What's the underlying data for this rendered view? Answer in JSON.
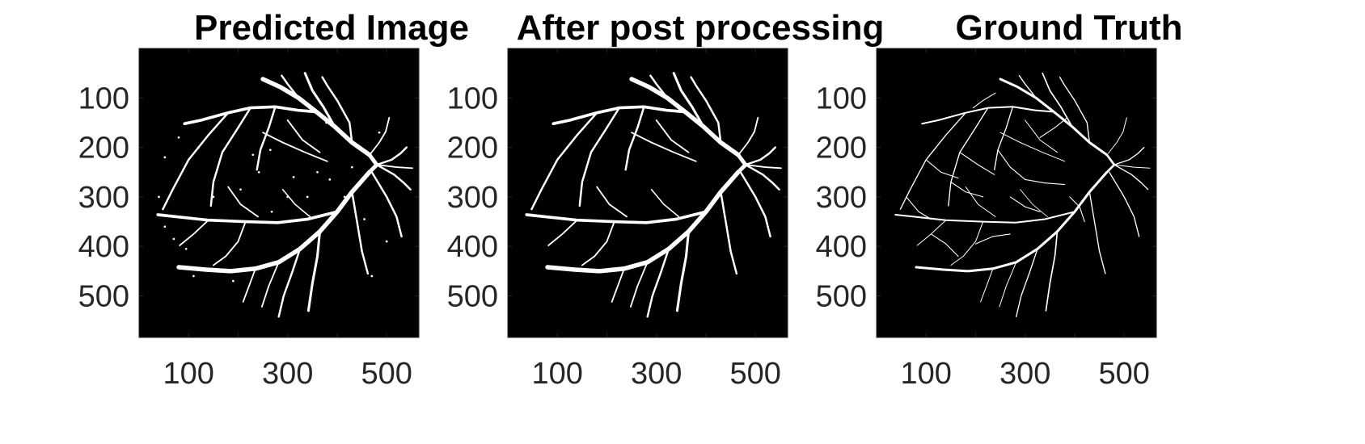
{
  "figure": {
    "panels": [
      {
        "title": "Predicted Image",
        "variant": "predicted"
      },
      {
        "title": "After post processing",
        "variant": "post"
      },
      {
        "title": "Ground Truth",
        "variant": "truth"
      }
    ],
    "y_ticks": [
      {
        "value": 100,
        "label": "100"
      },
      {
        "value": 200,
        "label": "200"
      },
      {
        "value": 300,
        "label": "300"
      },
      {
        "value": 400,
        "label": "400"
      },
      {
        "value": 500,
        "label": "500"
      }
    ],
    "x_ticks": [
      {
        "value": 100,
        "label": "100"
      },
      {
        "value": 200,
        "label": ""
      },
      {
        "value": 300,
        "label": "300"
      },
      {
        "value": 400,
        "label": ""
      },
      {
        "value": 500,
        "label": "500"
      }
    ],
    "axis_range": {
      "x": [
        0,
        565
      ],
      "y": [
        0,
        584
      ]
    },
    "colors": {
      "background": "#000000",
      "vessel": "#ffffff",
      "tick_text": "#262626"
    }
  }
}
